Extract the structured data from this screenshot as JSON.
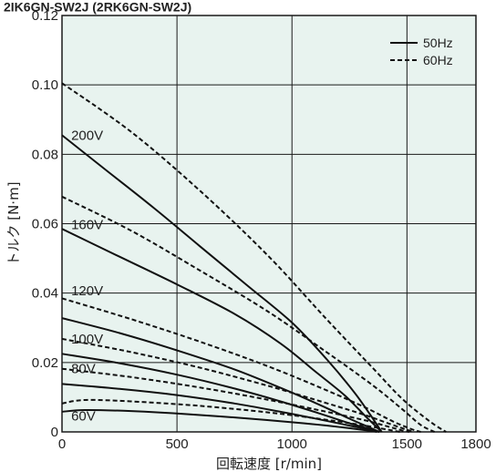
{
  "chart_data": {
    "type": "line",
    "header": "2IK6GN-SW2J (2RK6GN-SW2J)",
    "xlabel": "回転速度 [r/min]",
    "ylabel": "トルク [N·m]",
    "xlim": [
      0,
      1800
    ],
    "ylim": [
      0,
      0.12
    ],
    "x_ticks": [
      "0",
      "500",
      "1000",
      "1500",
      "1800"
    ],
    "x_tick_values": [
      0,
      500,
      1000,
      1500,
      1800
    ],
    "y_ticks": [
      "0",
      "0.02",
      "0.04",
      "0.06",
      "0.08",
      "0.10",
      "0.12"
    ],
    "y_tick_values": [
      0,
      0.02,
      0.04,
      0.06,
      0.08,
      0.1,
      0.12
    ],
    "grid": true,
    "background_color": "#e8f3ef",
    "line_color": "#111111",
    "legend": {
      "position": "top-right",
      "entries": [
        {
          "label": "50Hz",
          "style": "solid"
        },
        {
          "label": "60Hz",
          "style": "dashed"
        }
      ]
    },
    "voltage_labels": [
      {
        "text": "200V",
        "x": 40,
        "y": 0.0855
      },
      {
        "text": "160V",
        "x": 40,
        "y": 0.0597
      },
      {
        "text": "120V",
        "x": 40,
        "y": 0.0407
      },
      {
        "text": "100V",
        "x": 40,
        "y": 0.0268
      },
      {
        "text": "80V",
        "x": 40,
        "y": 0.0182
      },
      {
        "text": "60V",
        "x": 40,
        "y": 0.0046
      }
    ],
    "series": [
      {
        "voltage": "200V",
        "freq": "50Hz",
        "style": "solid",
        "points": [
          [
            0,
            0.0855
          ],
          [
            200,
            0.075
          ],
          [
            400,
            0.0645
          ],
          [
            600,
            0.0535
          ],
          [
            800,
            0.0425
          ],
          [
            1000,
            0.0315
          ],
          [
            1150,
            0.021
          ],
          [
            1270,
            0.0115
          ],
          [
            1340,
            0.005
          ],
          [
            1390,
            0.0
          ]
        ]
      },
      {
        "voltage": "200V",
        "freq": "60Hz",
        "style": "dashed",
        "points": [
          [
            0,
            0.1005
          ],
          [
            300,
            0.0865
          ],
          [
            600,
            0.0695
          ],
          [
            900,
            0.0505
          ],
          [
            1150,
            0.0325
          ],
          [
            1350,
            0.0185
          ],
          [
            1480,
            0.0095
          ],
          [
            1600,
            0.003
          ],
          [
            1670,
            0.0
          ]
        ]
      },
      {
        "voltage": "160V",
        "freq": "50Hz",
        "style": "solid",
        "points": [
          [
            0,
            0.0585
          ],
          [
            250,
            0.0505
          ],
          [
            500,
            0.0425
          ],
          [
            750,
            0.034
          ],
          [
            950,
            0.0255
          ],
          [
            1100,
            0.0175
          ],
          [
            1230,
            0.0105
          ],
          [
            1320,
            0.0045
          ],
          [
            1390,
            0.0
          ]
        ]
      },
      {
        "voltage": "160V",
        "freq": "60Hz",
        "style": "dashed",
        "points": [
          [
            0,
            0.0678
          ],
          [
            300,
            0.058
          ],
          [
            600,
            0.0465
          ],
          [
            900,
            0.0345
          ],
          [
            1150,
            0.023
          ],
          [
            1350,
            0.0135
          ],
          [
            1480,
            0.0065
          ],
          [
            1560,
            0.002
          ],
          [
            1620,
            0.0
          ]
        ]
      },
      {
        "voltage": "120V",
        "freq": "50Hz",
        "style": "solid",
        "points": [
          [
            0,
            0.0328
          ],
          [
            250,
            0.0285
          ],
          [
            500,
            0.0235
          ],
          [
            750,
            0.018
          ],
          [
            950,
            0.0127
          ],
          [
            1120,
            0.0078
          ],
          [
            1250,
            0.0038
          ],
          [
            1340,
            0.0012
          ],
          [
            1380,
            0.0
          ]
        ]
      },
      {
        "voltage": "120V",
        "freq": "60Hz",
        "style": "dashed",
        "points": [
          [
            0,
            0.0385
          ],
          [
            300,
            0.0325
          ],
          [
            600,
            0.026
          ],
          [
            900,
            0.0188
          ],
          [
            1150,
            0.012
          ],
          [
            1320,
            0.007
          ],
          [
            1440,
            0.003
          ],
          [
            1520,
            0.0008
          ],
          [
            1560,
            0.0
          ]
        ]
      },
      {
        "voltage": "100V",
        "freq": "50Hz",
        "style": "solid",
        "points": [
          [
            0,
            0.0225
          ],
          [
            250,
            0.0198
          ],
          [
            500,
            0.0165
          ],
          [
            750,
            0.0125
          ],
          [
            950,
            0.0088
          ],
          [
            1120,
            0.0053
          ],
          [
            1250,
            0.0025
          ],
          [
            1340,
            0.0008
          ],
          [
            1380,
            0.0
          ]
        ]
      },
      {
        "voltage": "100V",
        "freq": "60Hz",
        "style": "dashed",
        "points": [
          [
            0,
            0.0268
          ],
          [
            300,
            0.023
          ],
          [
            600,
            0.0185
          ],
          [
            900,
            0.0132
          ],
          [
            1150,
            0.0083
          ],
          [
            1320,
            0.0048
          ],
          [
            1430,
            0.0022
          ],
          [
            1500,
            0.0006
          ],
          [
            1530,
            0.0
          ]
        ]
      },
      {
        "voltage": "80V",
        "freq": "50Hz",
        "style": "solid",
        "points": [
          [
            0,
            0.0138
          ],
          [
            250,
            0.0124
          ],
          [
            500,
            0.0106
          ],
          [
            750,
            0.0082
          ],
          [
            950,
            0.0058
          ],
          [
            1120,
            0.0036
          ],
          [
            1250,
            0.0018
          ],
          [
            1340,
            0.0006
          ],
          [
            1380,
            0.0
          ]
        ]
      },
      {
        "voltage": "80V",
        "freq": "60Hz",
        "style": "dashed",
        "points": [
          [
            0,
            0.0182
          ],
          [
            300,
            0.0158
          ],
          [
            600,
            0.0128
          ],
          [
            900,
            0.0092
          ],
          [
            1150,
            0.0058
          ],
          [
            1320,
            0.0033
          ],
          [
            1420,
            0.0015
          ],
          [
            1480,
            0.0004
          ],
          [
            1510,
            0.0
          ]
        ]
      },
      {
        "voltage": "60V",
        "freq": "50Hz",
        "style": "solid",
        "points": [
          [
            0,
            0.0058
          ],
          [
            100,
            0.0063
          ],
          [
            300,
            0.006
          ],
          [
            550,
            0.0051
          ],
          [
            800,
            0.0039
          ],
          [
            1050,
            0.0025
          ],
          [
            1220,
            0.0013
          ],
          [
            1330,
            0.0004
          ],
          [
            1370,
            0.0
          ]
        ]
      },
      {
        "voltage": "60V",
        "freq": "60Hz",
        "style": "dashed",
        "points": [
          [
            0,
            0.0082
          ],
          [
            100,
            0.0092
          ],
          [
            300,
            0.0088
          ],
          [
            600,
            0.0075
          ],
          [
            900,
            0.0056
          ],
          [
            1150,
            0.0035
          ],
          [
            1320,
            0.0018
          ],
          [
            1420,
            0.0006
          ],
          [
            1470,
            0.0
          ]
        ]
      }
    ]
  }
}
